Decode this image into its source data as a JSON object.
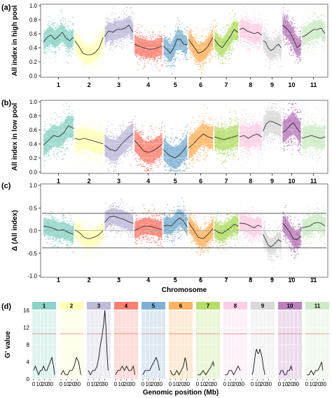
{
  "chart_data": [
    {
      "panel": "(a)",
      "type": "scatter",
      "ylabel": "All index in high pool",
      "ylim": [
        0,
        1.0
      ],
      "yticks": [
        "0.0",
        "0.2",
        "0.4",
        "0.6",
        "0.8",
        "1.0"
      ],
      "categories": [
        "1",
        "2",
        "3",
        "4",
        "5",
        "6",
        "7",
        "8",
        "9",
        "10",
        "11"
      ],
      "series": [
        {
          "chromosome": "1",
          "mean": [
            0.48,
            0.55,
            0.58,
            0.52,
            0.56,
            0.62,
            0.54,
            0.5,
            0.55
          ]
        },
        {
          "chromosome": "2",
          "mean": [
            0.5,
            0.42,
            0.32,
            0.3,
            0.3,
            0.33,
            0.4,
            0.55
          ]
        },
        {
          "chromosome": "3",
          "mean": [
            0.56,
            0.64,
            0.62,
            0.66,
            0.66,
            0.68,
            0.72,
            0.62
          ]
        },
        {
          "chromosome": "4",
          "mean": [
            0.45,
            0.42,
            0.4,
            0.38,
            0.38,
            0.4,
            0.42
          ]
        },
        {
          "chromosome": "5",
          "mean": [
            0.42,
            0.38,
            0.32,
            0.4,
            0.52,
            0.52,
            0.45,
            0.44
          ]
        },
        {
          "chromosome": "6",
          "mean": [
            0.52,
            0.42,
            0.32,
            0.35,
            0.42,
            0.55
          ]
        },
        {
          "chromosome": "7",
          "mean": [
            0.52,
            0.44,
            0.4,
            0.48,
            0.56,
            0.66,
            0.62
          ]
        },
        {
          "chromosome": "8",
          "mean": [
            0.66,
            0.68,
            0.64,
            0.62,
            0.6,
            0.62,
            0.58
          ]
        },
        {
          "chromosome": "9",
          "mean": [
            0.5,
            0.48,
            0.4,
            0.36,
            0.38,
            0.42,
            0.45,
            0.4
          ]
        },
        {
          "chromosome": "10",
          "mean": [
            0.72,
            0.68,
            0.62,
            0.52,
            0.4,
            0.44
          ]
        },
        {
          "chromosome": "11",
          "mean": [
            0.55,
            0.58,
            0.62,
            0.66,
            0.66,
            0.68,
            0.6
          ]
        }
      ]
    },
    {
      "panel": "(b)",
      "type": "scatter",
      "ylabel": "All index in low pool",
      "ylim": [
        0,
        1.0
      ],
      "yticks": [
        "0.0",
        "0.2",
        "0.4",
        "0.6",
        "0.8",
        "1.0"
      ],
      "categories": [
        "1",
        "2",
        "3",
        "4",
        "5",
        "6",
        "7",
        "8",
        "9",
        "10",
        "11"
      ],
      "series": [
        {
          "chromosome": "1",
          "mean": [
            0.38,
            0.45,
            0.52,
            0.5,
            0.55,
            0.66,
            0.62
          ]
        },
        {
          "chromosome": "2",
          "mean": [
            0.48,
            0.46,
            0.48,
            0.46,
            0.44,
            0.42,
            0.4
          ]
        },
        {
          "chromosome": "3",
          "mean": [
            0.38,
            0.32,
            0.3,
            0.4,
            0.48,
            0.55
          ]
        },
        {
          "chromosome": "4",
          "mean": [
            0.45,
            0.38,
            0.3,
            0.28,
            0.3,
            0.34,
            0.4
          ]
        },
        {
          "chromosome": "5",
          "mean": [
            0.32,
            0.26,
            0.22,
            0.2,
            0.24,
            0.3,
            0.38
          ]
        },
        {
          "chromosome": "6",
          "mean": [
            0.34,
            0.4,
            0.48,
            0.54,
            0.5,
            0.48
          ]
        },
        {
          "chromosome": "7",
          "mean": [
            0.5,
            0.48,
            0.46,
            0.48,
            0.5,
            0.52
          ]
        },
        {
          "chromosome": "8",
          "mean": [
            0.5,
            0.52,
            0.48,
            0.52,
            0.54,
            0.5
          ]
        },
        {
          "chromosome": "9",
          "mean": [
            0.58,
            0.68,
            0.72,
            0.72,
            0.7,
            0.68,
            0.66
          ]
        },
        {
          "chromosome": "10",
          "mean": [
            0.56,
            0.6,
            0.66,
            0.7,
            0.62,
            0.56
          ]
        },
        {
          "chromosome": "11",
          "mean": [
            0.48,
            0.5,
            0.52,
            0.5,
            0.48,
            0.5
          ]
        }
      ]
    },
    {
      "panel": "(c)",
      "type": "scatter",
      "ylabel": "Δ (All index)",
      "xlabel": "Chromosome",
      "ylim": [
        -1.0,
        1.0
      ],
      "yticks": [
        "-1.0",
        "-0.5",
        "0.0",
        "0.5",
        "1.0"
      ],
      "threshold_upper": 0.38,
      "threshold_lower": -0.38,
      "categories": [
        "1",
        "2",
        "3",
        "4",
        "5",
        "6",
        "7",
        "8",
        "9",
        "10",
        "11"
      ],
      "series": [
        {
          "chromosome": "1",
          "mean": [
            0.1,
            0.08,
            0.05,
            0.0,
            0.02,
            -0.04,
            -0.08
          ]
        },
        {
          "chromosome": "2",
          "mean": [
            0.02,
            -0.05,
            -0.15,
            -0.18,
            -0.15,
            -0.1,
            0.0
          ]
        },
        {
          "chromosome": "3",
          "mean": [
            0.18,
            0.3,
            0.32,
            0.28,
            0.25,
            0.2,
            0.16
          ]
        },
        {
          "chromosome": "4",
          "mean": [
            0.0,
            0.05,
            0.1,
            0.1,
            0.08,
            0.05,
            0.02
          ]
        },
        {
          "chromosome": "5",
          "mean": [
            0.1,
            0.12,
            0.1,
            0.2,
            0.28,
            0.22,
            0.08
          ]
        },
        {
          "chromosome": "6",
          "mean": [
            0.18,
            0.02,
            -0.15,
            -0.18,
            -0.08,
            0.05
          ]
        },
        {
          "chromosome": "7",
          "mean": [
            0.02,
            -0.04,
            -0.06,
            0.0,
            0.06,
            0.14,
            0.1
          ]
        },
        {
          "chromosome": "8",
          "mean": [
            0.16,
            0.16,
            0.14,
            0.1,
            0.06,
            0.12,
            0.08
          ]
        },
        {
          "chromosome": "9",
          "mean": [
            -0.08,
            -0.2,
            -0.32,
            -0.36,
            -0.32,
            -0.26,
            -0.2,
            -0.25
          ]
        },
        {
          "chromosome": "10",
          "mean": [
            0.16,
            0.08,
            -0.04,
            -0.18,
            -0.2,
            -0.12
          ]
        },
        {
          "chromosome": "11",
          "mean": [
            0.06,
            0.08,
            0.1,
            0.16,
            0.18,
            0.16,
            0.1
          ]
        }
      ]
    },
    {
      "panel": "(d)",
      "type": "line",
      "ylabel": "G' value",
      "xlabel": "Genomic position (Mb)",
      "ylim": [
        0,
        16
      ],
      "yticks": [
        "0",
        "4",
        "8",
        "12",
        "16"
      ],
      "xticks": [
        "0",
        "10",
        "20",
        "30"
      ],
      "threshold": 10.5,
      "categories": [
        "1",
        "2",
        "3",
        "4",
        "5",
        "6",
        "7",
        "8",
        "9",
        "10",
        "11"
      ],
      "series": [
        {
          "chromosome": "1",
          "length_mb": 38,
          "x": [
            0,
            3,
            6,
            9,
            12,
            15,
            18,
            21,
            24,
            27,
            30,
            33,
            36,
            38
          ],
          "y": [
            2,
            3,
            2,
            1,
            2,
            2,
            3,
            2,
            2,
            3,
            4,
            5,
            3,
            1
          ]
        },
        {
          "chromosome": "2",
          "length_mb": 36,
          "x": [
            0,
            4,
            8,
            12,
            16,
            20,
            24,
            28,
            32,
            36
          ],
          "y": [
            1,
            2,
            1,
            1,
            2,
            2,
            3,
            5,
            4,
            1
          ]
        },
        {
          "chromosome": "3",
          "length_mb": 36,
          "x": [
            0,
            4,
            8,
            12,
            16,
            19,
            22,
            25,
            28,
            30,
            32,
            34,
            36
          ],
          "y": [
            2,
            1,
            2,
            2,
            3,
            5,
            8,
            10,
            13,
            16,
            12,
            6,
            2
          ]
        },
        {
          "chromosome": "4",
          "length_mb": 35,
          "x": [
            0,
            4,
            8,
            12,
            16,
            20,
            24,
            28,
            32,
            35
          ],
          "y": [
            1,
            2,
            2,
            3,
            2,
            3,
            2,
            2,
            3,
            1
          ]
        },
        {
          "chromosome": "5",
          "length_mb": 30,
          "x": [
            0,
            4,
            8,
            12,
            16,
            20,
            24,
            27,
            30
          ],
          "y": [
            1,
            2,
            2,
            2,
            3,
            4,
            5,
            4,
            2
          ]
        },
        {
          "chromosome": "6",
          "length_mb": 31,
          "x": [
            0,
            4,
            8,
            12,
            16,
            20,
            24,
            27,
            29,
            31
          ],
          "y": [
            2,
            1,
            1,
            2,
            1,
            2,
            3,
            5,
            4,
            2
          ]
        },
        {
          "chromosome": "7",
          "length_mb": 30,
          "x": [
            0,
            5,
            10,
            15,
            20,
            25,
            28,
            30
          ],
          "y": [
            1,
            1,
            2,
            1,
            2,
            3,
            4,
            3
          ]
        },
        {
          "chromosome": "8",
          "length_mb": 28,
          "x": [
            0,
            4,
            8,
            12,
            16,
            20,
            24,
            28
          ],
          "y": [
            1,
            1,
            2,
            2,
            1,
            2,
            3,
            2
          ]
        },
        {
          "chromosome": "9",
          "length_mb": 23,
          "x": [
            0,
            2,
            4,
            6,
            8,
            10,
            12,
            14,
            16,
            18,
            20,
            23
          ],
          "y": [
            1,
            2,
            4,
            6,
            7,
            6,
            6,
            7,
            6,
            5,
            3,
            1
          ]
        },
        {
          "chromosome": "10",
          "length_mb": 23,
          "x": [
            0,
            3,
            6,
            9,
            12,
            15,
            18,
            21,
            23
          ],
          "y": [
            1,
            2,
            2,
            1,
            1,
            2,
            2,
            3,
            2
          ]
        },
        {
          "chromosome": "11",
          "length_mb": 29,
          "x": [
            0,
            4,
            8,
            12,
            16,
            20,
            24,
            27,
            29
          ],
          "y": [
            1,
            1,
            2,
            1,
            2,
            2,
            3,
            4,
            2
          ]
        }
      ]
    }
  ],
  "colors": [
    "#8dd3c7",
    "#ffffb3",
    "#bebada",
    "#fb8072",
    "#80b1d3",
    "#fdb462",
    "#b3de69",
    "#fccde5",
    "#d9d9d9",
    "#bc80bd",
    "#ccebc5"
  ]
}
